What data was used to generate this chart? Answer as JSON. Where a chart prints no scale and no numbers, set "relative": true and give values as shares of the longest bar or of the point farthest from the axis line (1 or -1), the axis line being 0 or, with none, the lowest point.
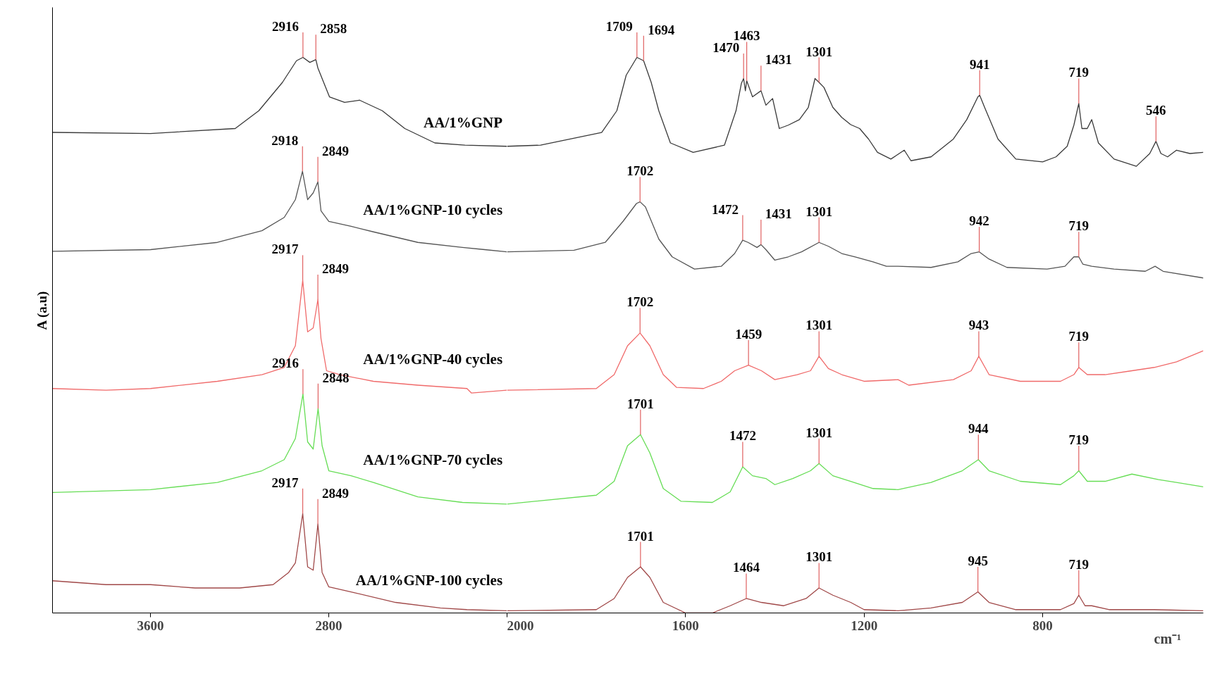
{
  "chart_data": [
    {
      "type": "line",
      "relative": true,
      "ylabel": "A (a.u)",
      "xlim": [
        4040,
        2000
      ],
      "xticks": [
        3600,
        2800
      ],
      "tick_labels": "x",
      "grid": false,
      "marker": "none",
      "line_style": "solid",
      "series": [
        {
          "name": "AA/1%GNP",
          "color": "#3a3a3a",
          "x": [
            4040,
            3600,
            3220,
            3114,
            3008,
            2945,
            2916,
            2885,
            2858,
            2849,
            2797,
            2729,
            2662,
            2560,
            2459,
            2324,
            2189,
            2000
          ],
          "values": [
            0.865,
            0.863,
            0.872,
            0.904,
            0.955,
            0.994,
            1.0,
            0.991,
            0.996,
            0.981,
            0.929,
            0.919,
            0.923,
            0.904,
            0.872,
            0.846,
            0.842,
            0.84
          ]
        },
        {
          "name": "AA/1%GNP-10 cycles",
          "color": "#555555",
          "x": [
            4040,
            3600,
            3300,
            3100,
            3000,
            2950,
            2918,
            2895,
            2870,
            2849,
            2835,
            2800,
            2700,
            2600,
            2400,
            2200,
            2100,
            2000
          ],
          "values": [
            0.651,
            0.654,
            0.667,
            0.688,
            0.712,
            0.744,
            0.795,
            0.744,
            0.756,
            0.776,
            0.724,
            0.705,
            0.696,
            0.686,
            0.667,
            0.658,
            0.654,
            0.65
          ]
        },
        {
          "name": "AA/1%GNP-40 cycles",
          "color": "#f06a6a",
          "x": [
            4040,
            3800,
            3600,
            3300,
            3100,
            3000,
            2950,
            2917,
            2895,
            2870,
            2849,
            2835,
            2810,
            2750,
            2600,
            2400,
            2180,
            2160,
            2000
          ],
          "values": [
            0.404,
            0.401,
            0.404,
            0.417,
            0.429,
            0.442,
            0.481,
            0.599,
            0.506,
            0.513,
            0.564,
            0.494,
            0.436,
            0.429,
            0.417,
            0.41,
            0.404,
            0.396,
            0.401
          ]
        },
        {
          "name": "AA/1%GNP-70 cycles",
          "color": "#66dd55",
          "x": [
            4040,
            3600,
            3300,
            3100,
            3000,
            2950,
            2916,
            2895,
            2870,
            2848,
            2830,
            2800,
            2700,
            2600,
            2400,
            2200,
            2000
          ],
          "values": [
            0.217,
            0.222,
            0.235,
            0.256,
            0.276,
            0.314,
            0.394,
            0.308,
            0.295,
            0.368,
            0.301,
            0.256,
            0.247,
            0.235,
            0.209,
            0.199,
            0.196
          ]
        },
        {
          "name": "AA/1%GNP-100 cycles",
          "color": "#a04848",
          "x": [
            4040,
            3800,
            3600,
            3400,
            3200,
            3050,
            2980,
            2950,
            2917,
            2895,
            2870,
            2849,
            2830,
            2800,
            2700,
            2500,
            2300,
            2180,
            2000
          ],
          "values": [
            0.058,
            0.051,
            0.051,
            0.045,
            0.045,
            0.051,
            0.073,
            0.09,
            0.179,
            0.083,
            0.077,
            0.16,
            0.073,
            0.047,
            0.038,
            0.019,
            0.009,
            0.006,
            0.004
          ]
        }
      ],
      "annotations": [
        {
          "text": "2916",
          "x": 2916,
          "y": 1.0
        },
        {
          "text": "2858",
          "x": 2858,
          "y": 0.996
        },
        {
          "text": "2918",
          "x": 2918,
          "y": 0.795
        },
        {
          "text": "2849",
          "x": 2849,
          "y": 0.776
        },
        {
          "text": "2917",
          "x": 2917,
          "y": 0.599
        },
        {
          "text": "2849",
          "x": 2849,
          "y": 0.564
        },
        {
          "text": "2916",
          "x": 2916,
          "y": 0.394
        },
        {
          "text": "2848",
          "x": 2848,
          "y": 0.368
        },
        {
          "text": "2917",
          "x": 2917,
          "y": 0.179
        },
        {
          "text": "2849",
          "x": 2849,
          "y": 0.16
        }
      ]
    },
    {
      "type": "line",
      "relative": true,
      "xlabel": "cm⁻¹",
      "xlim": [
        2000,
        440
      ],
      "xticks": [
        2000,
        1600,
        1200,
        800
      ],
      "tick_labels": "x",
      "grid": false,
      "marker": "none",
      "line_style": "solid",
      "series": [
        {
          "color": "#3a3a3a",
          "x": [
            2000,
            1925,
            1788,
            1754,
            1733,
            1709,
            1694,
            1677,
            1660,
            1634,
            1583,
            1513,
            1487,
            1475,
            1470,
            1466,
            1463,
            1450,
            1431,
            1420,
            1405,
            1390,
            1370,
            1345,
            1325,
            1310,
            1301,
            1290,
            1270,
            1250,
            1230,
            1210,
            1190,
            1170,
            1140,
            1110,
            1095,
            1050,
            1000,
            970,
            945,
            941,
            930,
            900,
            860,
            800,
            770,
            745,
            730,
            719,
            712,
            700,
            690,
            675,
            640,
            590,
            560,
            546,
            535,
            520,
            500,
            470,
            440
          ],
          "values": [
            0.84,
            0.842,
            0.865,
            0.904,
            0.968,
            1.0,
            0.994,
            0.955,
            0.904,
            0.846,
            0.829,
            0.842,
            0.904,
            0.953,
            0.962,
            0.94,
            0.958,
            0.929,
            0.94,
            0.914,
            0.926,
            0.872,
            0.878,
            0.888,
            0.91,
            0.962,
            0.955,
            0.946,
            0.91,
            0.892,
            0.879,
            0.872,
            0.853,
            0.829,
            0.817,
            0.833,
            0.814,
            0.821,
            0.853,
            0.888,
            0.929,
            0.932,
            0.91,
            0.853,
            0.817,
            0.812,
            0.821,
            0.84,
            0.878,
            0.917,
            0.872,
            0.872,
            0.888,
            0.846,
            0.817,
            0.804,
            0.827,
            0.849,
            0.827,
            0.821,
            0.833,
            0.827,
            0.829
          ]
        },
        {
          "color": "#555555",
          "x": [
            2000,
            1850,
            1780,
            1740,
            1710,
            1702,
            1690,
            1660,
            1630,
            1580,
            1520,
            1490,
            1472,
            1460,
            1440,
            1431,
            1420,
            1400,
            1370,
            1340,
            1301,
            1280,
            1250,
            1220,
            1180,
            1150,
            1124,
            1050,
            990,
            960,
            942,
            920,
            880,
            790,
            750,
            730,
            719,
            710,
            690,
            640,
            570,
            548,
            530,
            440
          ],
          "values": [
            0.65,
            0.653,
            0.667,
            0.705,
            0.737,
            0.74,
            0.731,
            0.673,
            0.641,
            0.619,
            0.624,
            0.647,
            0.671,
            0.667,
            0.658,
            0.663,
            0.654,
            0.635,
            0.641,
            0.65,
            0.667,
            0.66,
            0.647,
            0.641,
            0.632,
            0.624,
            0.624,
            0.622,
            0.632,
            0.647,
            0.65,
            0.637,
            0.622,
            0.619,
            0.624,
            0.641,
            0.641,
            0.628,
            0.624,
            0.619,
            0.615,
            0.624,
            0.615,
            0.603
          ]
        },
        {
          "color": "#f06a6a",
          "x": [
            2000,
            1800,
            1760,
            1730,
            1702,
            1680,
            1650,
            1620,
            1560,
            1520,
            1490,
            1459,
            1430,
            1400,
            1350,
            1320,
            1301,
            1280,
            1250,
            1200,
            1124,
            1100,
            1000,
            960,
            943,
            920,
            850,
            760,
            730,
            719,
            700,
            660,
            600,
            550,
            500,
            440
          ],
          "values": [
            0.401,
            0.404,
            0.429,
            0.481,
            0.504,
            0.481,
            0.429,
            0.406,
            0.404,
            0.417,
            0.436,
            0.446,
            0.436,
            0.42,
            0.429,
            0.436,
            0.462,
            0.44,
            0.429,
            0.417,
            0.42,
            0.41,
            0.42,
            0.436,
            0.462,
            0.429,
            0.417,
            0.417,
            0.429,
            0.442,
            0.429,
            0.429,
            0.436,
            0.442,
            0.452,
            0.472
          ]
        },
        {
          "color": "#66dd55",
          "x": [
            2000,
            1800,
            1760,
            1730,
            1701,
            1680,
            1650,
            1610,
            1540,
            1500,
            1472,
            1450,
            1420,
            1400,
            1360,
            1320,
            1301,
            1270,
            1230,
            1180,
            1124,
            1050,
            980,
            944,
            920,
            850,
            760,
            730,
            719,
            700,
            660,
            600,
            540,
            500,
            440
          ],
          "values": [
            0.196,
            0.212,
            0.237,
            0.301,
            0.321,
            0.288,
            0.224,
            0.201,
            0.199,
            0.218,
            0.263,
            0.247,
            0.242,
            0.231,
            0.242,
            0.256,
            0.269,
            0.247,
            0.237,
            0.224,
            0.222,
            0.235,
            0.256,
            0.276,
            0.256,
            0.237,
            0.231,
            0.247,
            0.256,
            0.237,
            0.237,
            0.25,
            0.24,
            0.235,
            0.227
          ]
        },
        {
          "color": "#a04848",
          "x": [
            2000,
            1800,
            1760,
            1730,
            1701,
            1680,
            1650,
            1600,
            1540,
            1500,
            1464,
            1430,
            1380,
            1330,
            1301,
            1270,
            1230,
            1200,
            1124,
            1050,
            980,
            945,
            920,
            860,
            760,
            730,
            719,
            705,
            690,
            650,
            550,
            440
          ],
          "values": [
            0.004,
            0.006,
            0.026,
            0.064,
            0.083,
            0.064,
            0.019,
            0.0,
            0.0,
            0.013,
            0.026,
            0.019,
            0.013,
            0.026,
            0.045,
            0.032,
            0.019,
            0.006,
            0.004,
            0.009,
            0.019,
            0.038,
            0.019,
            0.006,
            0.006,
            0.017,
            0.032,
            0.013,
            0.013,
            0.006,
            0.006,
            0.004
          ]
        }
      ],
      "annotations": [
        {
          "text": "1709",
          "x": 1709,
          "y": 1.0
        },
        {
          "text": "1694",
          "x": 1694,
          "y": 0.994
        },
        {
          "text": "1470",
          "x": 1470,
          "y": 0.962
        },
        {
          "text": "1463",
          "x": 1463,
          "y": 0.958
        },
        {
          "text": "1431",
          "x": 1431,
          "y": 0.94
        },
        {
          "text": "1301",
          "x": 1301,
          "y": 0.955
        },
        {
          "text": "941",
          "x": 941,
          "y": 0.932
        },
        {
          "text": "719",
          "x": 719,
          "y": 0.917
        },
        {
          "text": "546",
          "x": 546,
          "y": 0.849
        },
        {
          "text": "1702",
          "x": 1702,
          "y": 0.74
        },
        {
          "text": "1472",
          "x": 1472,
          "y": 0.671
        },
        {
          "text": "1431",
          "x": 1431,
          "y": 0.663
        },
        {
          "text": "1301",
          "x": 1301,
          "y": 0.667
        },
        {
          "text": "942",
          "x": 942,
          "y": 0.65
        },
        {
          "text": "719",
          "x": 719,
          "y": 0.641
        },
        {
          "text": "1702",
          "x": 1702,
          "y": 0.504
        },
        {
          "text": "1459",
          "x": 1459,
          "y": 0.446
        },
        {
          "text": "1301",
          "x": 1301,
          "y": 0.462
        },
        {
          "text": "943",
          "x": 943,
          "y": 0.462
        },
        {
          "text": "719",
          "x": 719,
          "y": 0.442
        },
        {
          "text": "1701",
          "x": 1701,
          "y": 0.321
        },
        {
          "text": "1472",
          "x": 1472,
          "y": 0.263
        },
        {
          "text": "1301",
          "x": 1301,
          "y": 0.269
        },
        {
          "text": "944",
          "x": 944,
          "y": 0.276
        },
        {
          "text": "719",
          "x": 719,
          "y": 0.256
        },
        {
          "text": "1701",
          "x": 1701,
          "y": 0.083
        },
        {
          "text": "1464",
          "x": 1464,
          "y": 0.026
        },
        {
          "text": "1301",
          "x": 1301,
          "y": 0.045
        },
        {
          "text": "945",
          "x": 945,
          "y": 0.038
        },
        {
          "text": "719",
          "x": 719,
          "y": 0.032
        }
      ]
    }
  ]
}
